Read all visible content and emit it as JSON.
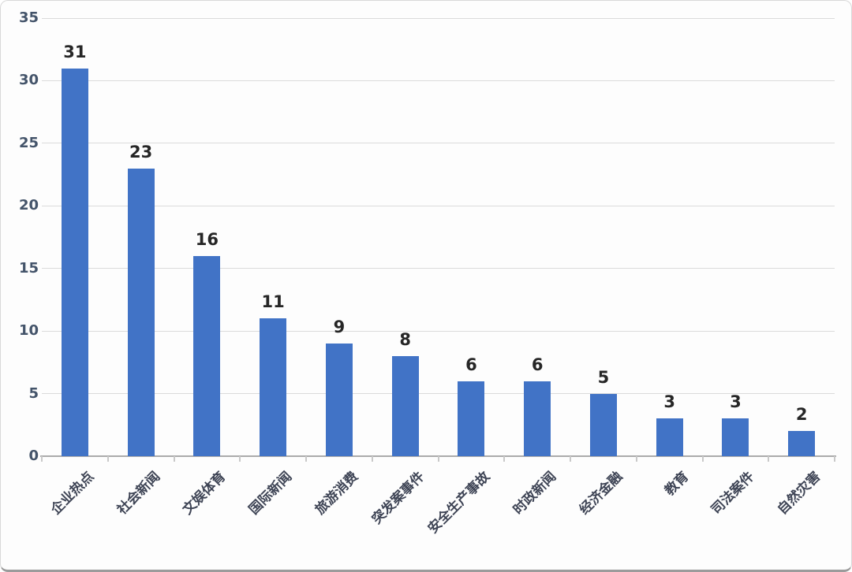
{
  "chart_data": {
    "type": "bar",
    "title": "",
    "xlabel": "",
    "ylabel": "",
    "categories": [
      "企业热点",
      "社会新闻",
      "文娱体育",
      "国际新闻",
      "旅游消费",
      "突发案事件",
      "安全生产事故",
      "时政新闻",
      "经济金融",
      "教育",
      "司法案件",
      "自然灾害"
    ],
    "values": [
      31,
      23,
      16,
      11,
      9,
      8,
      6,
      6,
      5,
      3,
      3,
      2
    ],
    "yticks": [
      0,
      5,
      10,
      15,
      20,
      25,
      30,
      35
    ],
    "ylim": [
      0,
      35
    ],
    "grid": true,
    "legend": "none",
    "data_labels": true,
    "colors": {
      "bar": "#4173C6",
      "gridline": "#DBDBDB",
      "axis_line": "#ABABAB",
      "y_tick_label": "#44546A",
      "category_label": "#3E4455",
      "value_label": "#262626",
      "background": "#FDFDFD",
      "border": "#D8D8D8"
    }
  }
}
